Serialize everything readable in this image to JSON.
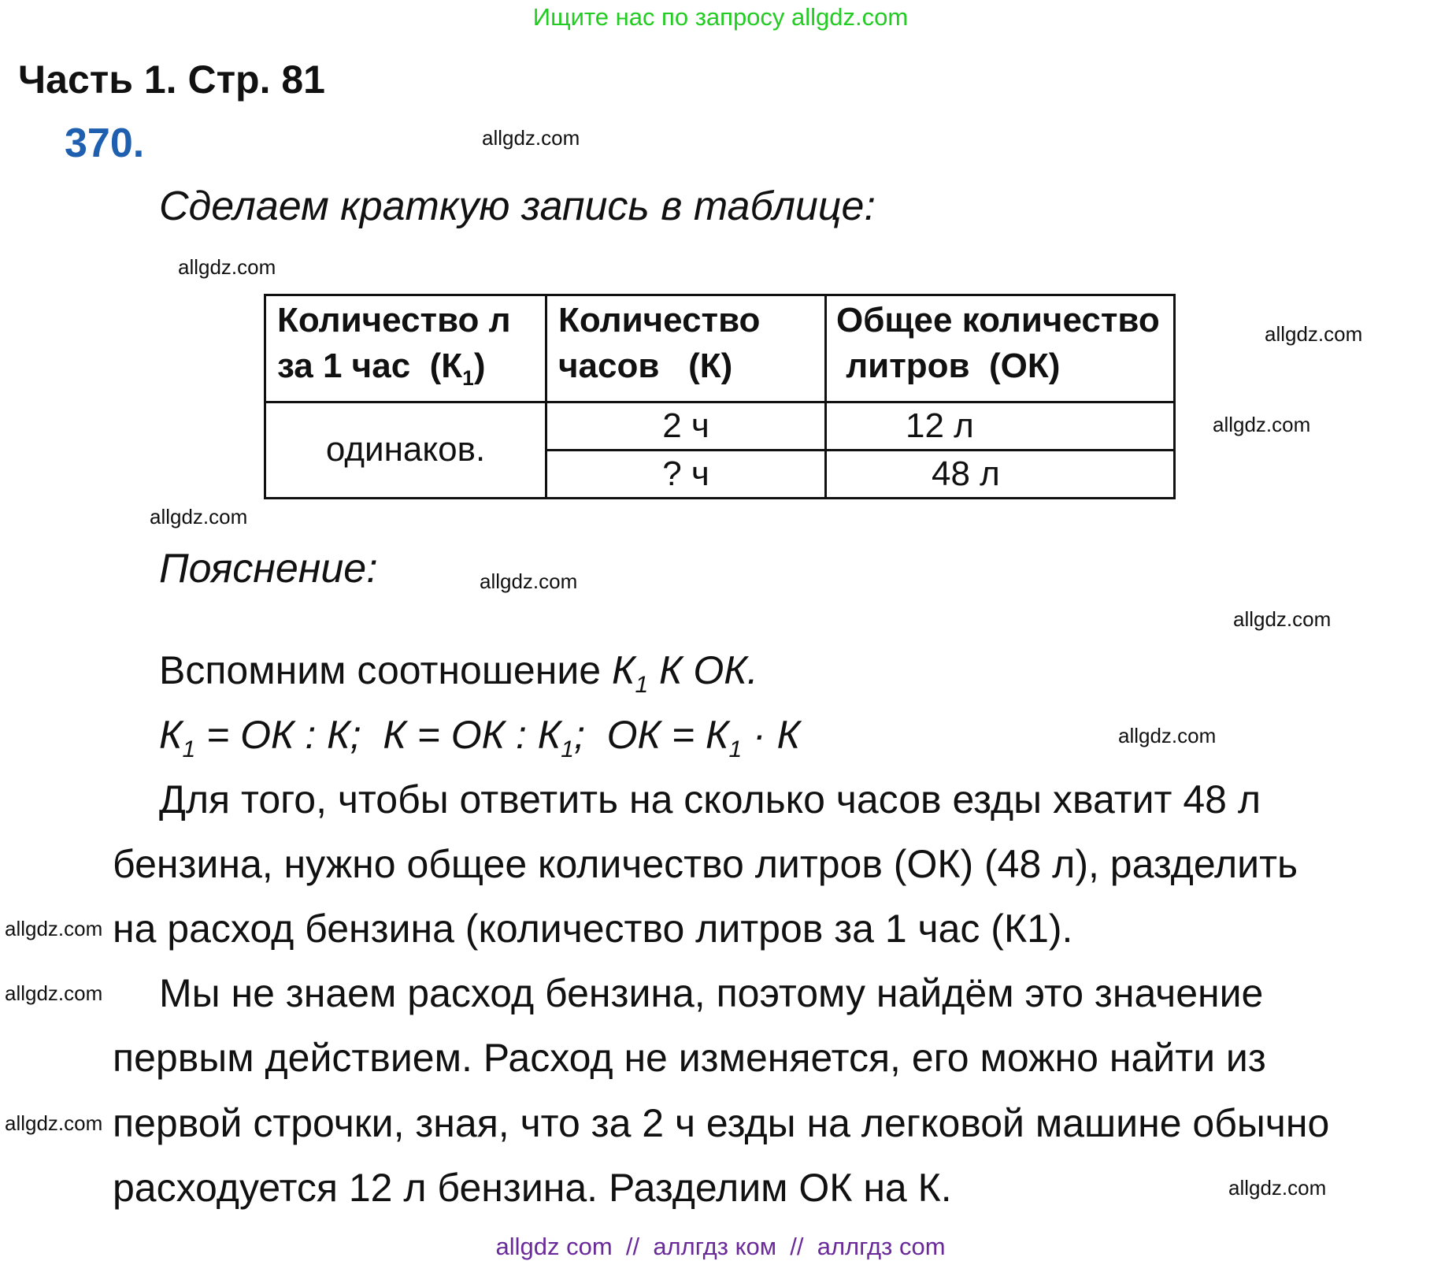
{
  "banner_top": "Ищите нас по запросу allgdz.com",
  "banner_bottom": "allgdz com  //  аллгдз ком  //  аллгдз com",
  "colors": {
    "banner_top": "#22cc22",
    "banner_bottom": "#6a2a9a",
    "task_number": "#1f5fb0"
  },
  "page_title": "Часть 1. Стр. 81",
  "task_number": "370.",
  "intro": "Сделаем краткую запись в таблице:",
  "table": {
    "headers": [
      {
        "line1": "Количество л",
        "line2": "за 1 час  (К",
        "sub": "1",
        "tail": ")"
      },
      {
        "line1": "Количество",
        "line2": "часов   (К)"
      },
      {
        "line1": "Общее количество",
        "line2": " литров  (ОК)"
      }
    ],
    "merged_cell": "одинаков.",
    "rows": [
      [
        "2 ч",
        "12 л"
      ],
      [
        "? ч",
        "48 л"
      ]
    ]
  },
  "explanation_label": "Пояснение:",
  "recall": {
    "text": "Вспомним соотношение ",
    "k": "К",
    "sub": "1",
    "rest": " К ОК."
  },
  "formula": {
    "p1": "К",
    "s1": "1",
    "p2": " = ОК : К;  К = ОК : К",
    "s2": "1",
    "p3": ";  ОК = К",
    "s3": "1",
    "p4": " · К"
  },
  "paragraph_lines": [
    "Для того, чтобы ответить на сколько часов езды хватит 48 л",
    "бензина, нужно общее количество литров (ОК) (48 л), разделить",
    "на расход бензина (количество литров за 1 час  (К1).",
    "Мы не знаем  расход бензина, поэтому найдём это значение",
    "первым действием. Расход не изменяется, его можно найти из",
    "первой строчки, зная, что за 2 ч езды на легковой машине обычно",
    "расходуется 12 л бензина. Разделим ОК на К."
  ],
  "watermark": "allgdz.com"
}
